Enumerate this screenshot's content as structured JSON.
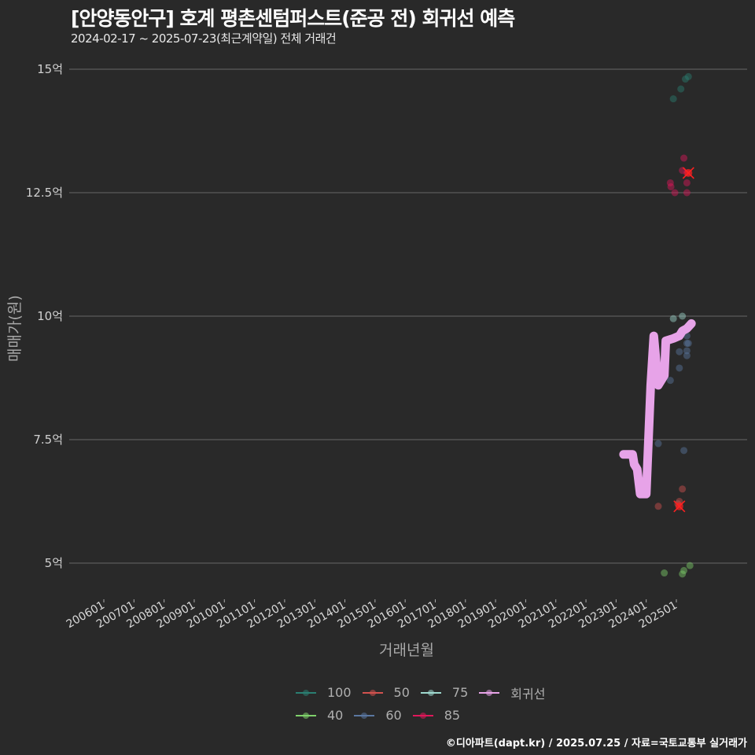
{
  "header": {
    "title": "[안양동안구] 호계 평촌센텀퍼스트(준공 전) 회귀선 예측",
    "subtitle": "2024-02-17 ~ 2025-07-23(최근계약일) 전체 거래건"
  },
  "axes": {
    "ylabel": "매매가(원)",
    "xlabel": "거래년월"
  },
  "footer": {
    "credit": "©디아파트(dapt.kr) / 2025.07.25 / 자료=국토교통부 실거래가"
  },
  "legend": {
    "items": [
      {
        "label": "100",
        "color": "#2a7f72"
      },
      {
        "label": "50",
        "color": "#d2524f"
      },
      {
        "label": "75",
        "color": "#9fd9cf"
      },
      {
        "label": "회귀선",
        "color": "#e7a3e8"
      },
      {
        "label": "40",
        "color": "#7fd16b"
      },
      {
        "label": "60",
        "color": "#5a77a0"
      },
      {
        "label": "85",
        "color": "#e0175a"
      }
    ]
  },
  "chart_data": {
    "type": "scatter",
    "title": "[안양동안구] 호계 평촌센텀퍼스트(준공 전) 회귀선 예측",
    "subtitle": "2024-02-17 ~ 2025-07-23(최근계약일) 전체 거래건",
    "xlabel": "거래년월",
    "ylabel": "매매가(원)",
    "x_ticks": [
      "200601",
      "200701",
      "200801",
      "200901",
      "201001",
      "201101",
      "201201",
      "201301",
      "201401",
      "201501",
      "201601",
      "201701",
      "201801",
      "201901",
      "202001",
      "202101",
      "202201",
      "202301",
      "202401",
      "202501"
    ],
    "y_ticks": [
      "5억",
      "7.5억",
      "10억",
      "12.5억",
      "15억"
    ],
    "y_tick_values": [
      5,
      7.5,
      10,
      12.5,
      15
    ],
    "ylim": [
      4.4,
      15.1
    ],
    "xlim": [
      2004.9,
      2027.5
    ],
    "grid": "horizontal",
    "legend_position": "bottom",
    "series": [
      {
        "name": "100",
        "color": "#2a7f72",
        "points": [
          [
            2024.9,
            14.4
          ],
          [
            2025.15,
            14.6
          ],
          [
            2025.3,
            14.8
          ],
          [
            2025.4,
            14.85
          ]
        ]
      },
      {
        "name": "85",
        "color": "#e0175a",
        "points": [
          [
            2024.8,
            12.7
          ],
          [
            2024.82,
            12.62
          ],
          [
            2024.95,
            12.5
          ],
          [
            2025.2,
            12.95
          ],
          [
            2025.25,
            13.2
          ],
          [
            2025.35,
            12.9
          ],
          [
            2025.35,
            12.7
          ],
          [
            2025.35,
            12.5
          ]
        ]
      },
      {
        "name": "75",
        "color": "#9fd9cf",
        "points": [
          [
            2024.9,
            9.95
          ],
          [
            2025.2,
            10.0
          ]
        ]
      },
      {
        "name": "60",
        "color": "#5a77a0",
        "points": [
          [
            2024.4,
            7.42
          ],
          [
            2024.8,
            8.7
          ],
          [
            2025.1,
            8.95
          ],
          [
            2025.1,
            9.28
          ],
          [
            2025.25,
            7.28
          ],
          [
            2025.35,
            9.6
          ],
          [
            2025.35,
            9.45
          ],
          [
            2025.4,
            9.45
          ],
          [
            2025.35,
            9.3
          ],
          [
            2025.35,
            9.2
          ]
        ]
      },
      {
        "name": "50",
        "color": "#d2524f",
        "points": [
          [
            2024.4,
            6.15
          ],
          [
            2025.05,
            6.2
          ],
          [
            2025.1,
            6.25
          ],
          [
            2025.2,
            6.5
          ]
        ]
      },
      {
        "name": "40",
        "color": "#7fd16b",
        "points": [
          [
            2024.6,
            4.8
          ],
          [
            2025.2,
            4.78
          ],
          [
            2025.25,
            4.85
          ],
          [
            2025.45,
            4.95
          ]
        ]
      },
      {
        "name": "회귀선",
        "color": "#e7a3e8",
        "type": "line",
        "points": [
          [
            2023.25,
            7.2
          ],
          [
            2023.55,
            7.2
          ],
          [
            2023.6,
            7.0
          ],
          [
            2023.7,
            6.9
          ],
          [
            2023.8,
            6.4
          ],
          [
            2024.0,
            6.4
          ],
          [
            2024.15,
            8.6
          ],
          [
            2024.25,
            9.6
          ],
          [
            2024.4,
            8.6
          ],
          [
            2024.6,
            8.8
          ],
          [
            2024.65,
            9.5
          ],
          [
            2024.9,
            9.55
          ],
          [
            2025.1,
            9.6
          ],
          [
            2025.2,
            9.7
          ],
          [
            2025.35,
            9.75
          ],
          [
            2025.5,
            9.85
          ]
        ]
      }
    ],
    "highlights": [
      {
        "series": "85",
        "marker": "x",
        "color": "#ff2020",
        "x": 2025.4,
        "y": 12.9
      },
      {
        "series": "50",
        "marker": "x",
        "color": "#ff2020",
        "x": 2025.1,
        "y": 6.15
      }
    ]
  }
}
